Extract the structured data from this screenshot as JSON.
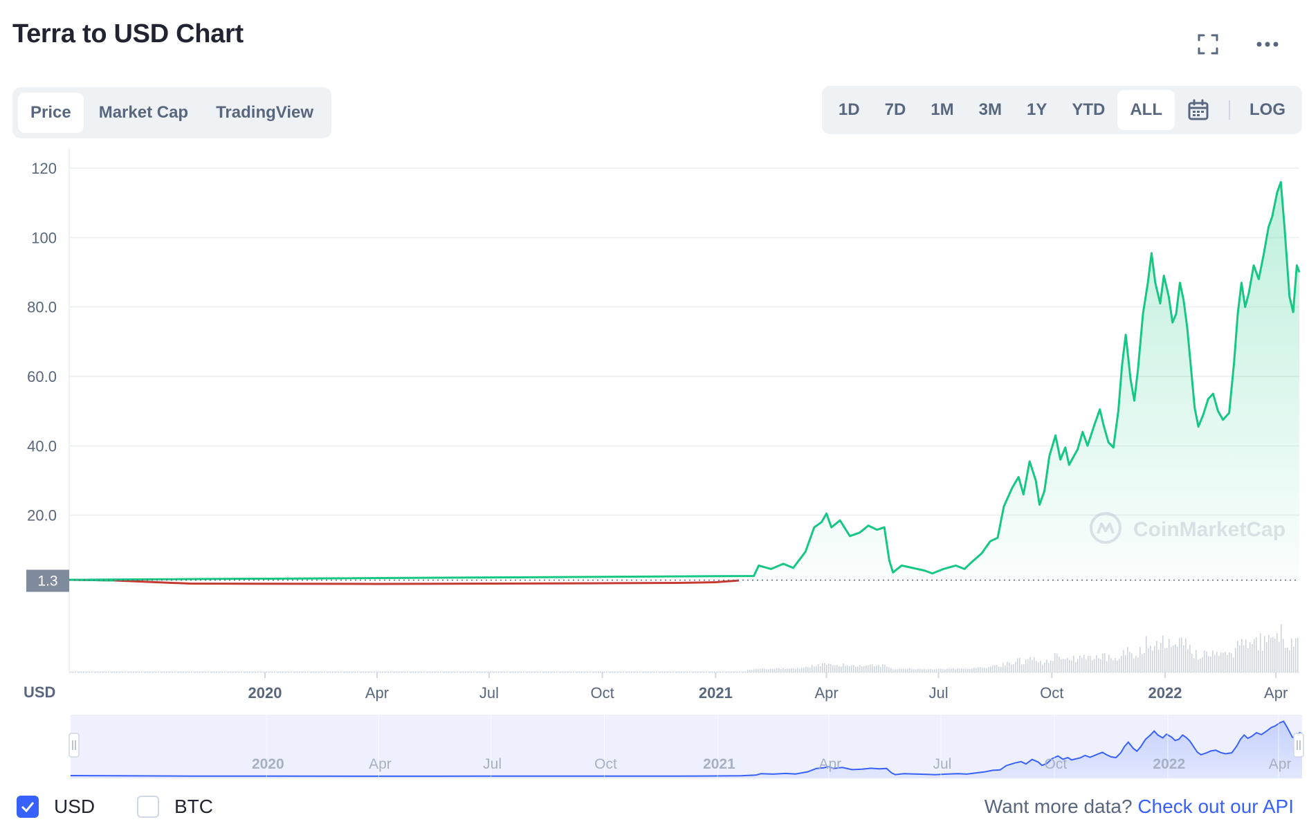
{
  "title": "Terra to USD Chart",
  "header_icons": [
    "fullscreen-icon",
    "more-icon"
  ],
  "tabs": [
    {
      "label": "Price",
      "active": true
    },
    {
      "label": "Market Cap",
      "active": false
    },
    {
      "label": "TradingView",
      "active": false
    }
  ],
  "ranges": [
    {
      "label": "1D",
      "active": false
    },
    {
      "label": "7D",
      "active": false
    },
    {
      "label": "1M",
      "active": false
    },
    {
      "label": "3M",
      "active": false
    },
    {
      "label": "1Y",
      "active": false
    },
    {
      "label": "YTD",
      "active": false
    },
    {
      "label": "ALL",
      "active": true
    }
  ],
  "log_label": "LOG",
  "currency_label": "USD",
  "watermark": "CoinMarketCap",
  "footer": {
    "usd_label": "USD",
    "usd_checked": true,
    "btc_label": "BTC",
    "btc_checked": false,
    "api_prompt": "Want more data?",
    "api_link": "Check out our API"
  },
  "colors": {
    "up": "#16c784",
    "down": "#c43a31",
    "accent": "#3861fb",
    "price_marker_bg": "#808a9d"
  },
  "chart_data": {
    "type": "area",
    "series_name": "Price",
    "current_price_label": "1.3",
    "current_price": 1.3,
    "ylim": [
      0,
      120
    ],
    "y_ticks": [
      "20.0",
      "40.0",
      "60.0",
      "80.0",
      "100",
      "120"
    ],
    "x_ticks": [
      {
        "label": "2020",
        "bold": true,
        "date": "2020-01-01"
      },
      {
        "label": "Apr",
        "bold": false,
        "date": "2020-04-01"
      },
      {
        "label": "Jul",
        "bold": false,
        "date": "2020-07-01"
      },
      {
        "label": "Oct",
        "bold": false,
        "date": "2020-10-01"
      },
      {
        "label": "2021",
        "bold": true,
        "date": "2021-01-01"
      },
      {
        "label": "Apr",
        "bold": false,
        "date": "2021-04-01"
      },
      {
        "label": "Jul",
        "bold": false,
        "date": "2021-07-01"
      },
      {
        "label": "Oct",
        "bold": false,
        "date": "2021-10-01"
      },
      {
        "label": "2022",
        "bold": true,
        "date": "2022-01-01"
      },
      {
        "label": "Apr",
        "bold": false,
        "date": "2022-04-01"
      }
    ],
    "x_range": [
      "2019-07-26",
      "2022-04-20"
    ],
    "points": [
      [
        "2019-07-26",
        1.4
      ],
      [
        "2019-09-01",
        1.2
      ],
      [
        "2019-11-01",
        0.3
      ],
      [
        "2020-01-01",
        0.25
      ],
      [
        "2020-04-01",
        0.2
      ],
      [
        "2020-07-01",
        0.3
      ],
      [
        "2020-10-01",
        0.4
      ],
      [
        "2020-12-01",
        0.5
      ],
      [
        "2021-01-01",
        0.7
      ],
      [
        "2021-01-20",
        1.2
      ],
      [
        "2021-02-01",
        2.5
      ],
      [
        "2021-02-05",
        5.5
      ],
      [
        "2021-02-15",
        4.5
      ],
      [
        "2021-02-25",
        6.0
      ],
      [
        "2021-03-05",
        4.8
      ],
      [
        "2021-03-15",
        9.5
      ],
      [
        "2021-03-22",
        16.5
      ],
      [
        "2021-03-28",
        18.0
      ],
      [
        "2021-04-01",
        20.5
      ],
      [
        "2021-04-05",
        16.5
      ],
      [
        "2021-04-12",
        18.5
      ],
      [
        "2021-04-20",
        14.0
      ],
      [
        "2021-04-28",
        15.0
      ],
      [
        "2021-05-05",
        17.0
      ],
      [
        "2021-05-12",
        15.8
      ],
      [
        "2021-05-18",
        16.5
      ],
      [
        "2021-05-22",
        7.0
      ],
      [
        "2021-05-25",
        3.5
      ],
      [
        "2021-06-01",
        5.5
      ],
      [
        "2021-06-10",
        4.8
      ],
      [
        "2021-06-20",
        4.0
      ],
      [
        "2021-06-26",
        3.2
      ],
      [
        "2021-07-05",
        4.5
      ],
      [
        "2021-07-15",
        5.5
      ],
      [
        "2021-07-22",
        4.5
      ],
      [
        "2021-07-28",
        6.5
      ],
      [
        "2021-08-05",
        9.0
      ],
      [
        "2021-08-12",
        12.5
      ],
      [
        "2021-08-18",
        13.5
      ],
      [
        "2021-08-23",
        22.5
      ],
      [
        "2021-08-30",
        28.0
      ],
      [
        "2021-09-04",
        31.0
      ],
      [
        "2021-09-08",
        26.0
      ],
      [
        "2021-09-13",
        35.5
      ],
      [
        "2021-09-18",
        30.0
      ],
      [
        "2021-09-21",
        23.0
      ],
      [
        "2021-09-25",
        27.0
      ],
      [
        "2021-09-29",
        37.0
      ],
      [
        "2021-10-04",
        43.0
      ],
      [
        "2021-10-08",
        36.0
      ],
      [
        "2021-10-12",
        39.5
      ],
      [
        "2021-10-15",
        34.5
      ],
      [
        "2021-10-22",
        39.0
      ],
      [
        "2021-10-26",
        44.0
      ],
      [
        "2021-10-30",
        40.0
      ],
      [
        "2021-11-05",
        46.5
      ],
      [
        "2021-11-09",
        50.5
      ],
      [
        "2021-11-12",
        46.0
      ],
      [
        "2021-11-16",
        41.0
      ],
      [
        "2021-11-20",
        39.5
      ],
      [
        "2021-11-24",
        50.0
      ],
      [
        "2021-11-27",
        63.0
      ],
      [
        "2021-11-30",
        72.0
      ],
      [
        "2021-12-04",
        59.0
      ],
      [
        "2021-12-07",
        53.0
      ],
      [
        "2021-12-10",
        62.0
      ],
      [
        "2021-12-14",
        78.0
      ],
      [
        "2021-12-18",
        87.0
      ],
      [
        "2021-12-21",
        95.5
      ],
      [
        "2021-12-24",
        87.0
      ],
      [
        "2021-12-28",
        81.0
      ],
      [
        "2021-12-31",
        89.0
      ],
      [
        "2022-01-04",
        83.0
      ],
      [
        "2022-01-07",
        75.5
      ],
      [
        "2022-01-10",
        78.0
      ],
      [
        "2022-01-13",
        87.0
      ],
      [
        "2022-01-16",
        82.0
      ],
      [
        "2022-01-19",
        74.0
      ],
      [
        "2022-01-22",
        62.5
      ],
      [
        "2022-01-25",
        51.0
      ],
      [
        "2022-01-28",
        45.5
      ],
      [
        "2022-02-01",
        49.0
      ],
      [
        "2022-02-05",
        53.5
      ],
      [
        "2022-02-09",
        55.0
      ],
      [
        "2022-02-13",
        50.0
      ],
      [
        "2022-02-17",
        47.5
      ],
      [
        "2022-02-22",
        49.5
      ],
      [
        "2022-02-26",
        64.0
      ],
      [
        "2022-03-01",
        78.0
      ],
      [
        "2022-03-04",
        87.0
      ],
      [
        "2022-03-07",
        80.0
      ],
      [
        "2022-03-10",
        84.0
      ],
      [
        "2022-03-14",
        92.0
      ],
      [
        "2022-03-18",
        88.0
      ],
      [
        "2022-03-22",
        95.0
      ],
      [
        "2022-03-26",
        103.0
      ],
      [
        "2022-03-29",
        106.0
      ],
      [
        "2022-04-02",
        113.0
      ],
      [
        "2022-04-05",
        116.0
      ],
      [
        "2022-04-08",
        103.0
      ],
      [
        "2022-04-12",
        83.0
      ],
      [
        "2022-04-15",
        78.5
      ],
      [
        "2022-04-18",
        92.0
      ],
      [
        "2022-04-20",
        90.0
      ]
    ],
    "navigator_ticks": [
      "2020",
      "Apr",
      "Jul",
      "Oct",
      "2021",
      "Apr",
      "Jul",
      "Oct",
      "2022",
      "Apr"
    ]
  }
}
